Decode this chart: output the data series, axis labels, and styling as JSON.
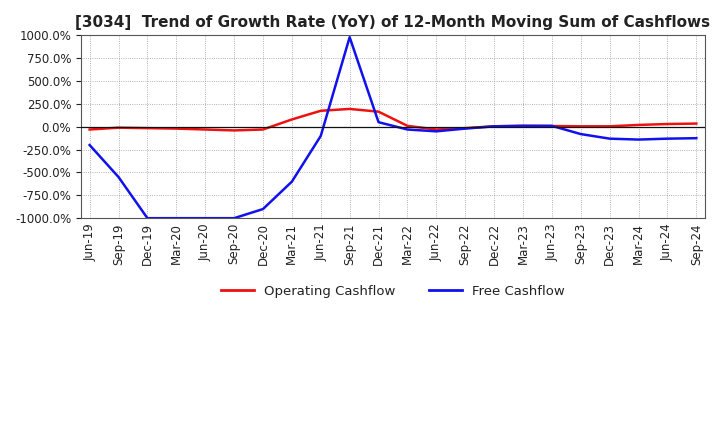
{
  "title": "[3034]  Trend of Growth Rate (YoY) of 12-Month Moving Sum of Cashflows",
  "xlabel_labels": [
    "Jun-19",
    "Sep-19",
    "Dec-19",
    "Mar-20",
    "Jun-20",
    "Sep-20",
    "Dec-20",
    "Mar-21",
    "Jun-21",
    "Sep-21",
    "Dec-21",
    "Mar-22",
    "Jun-22",
    "Sep-22",
    "Dec-22",
    "Mar-23",
    "Jun-23",
    "Sep-23",
    "Dec-23",
    "Mar-24",
    "Jun-24",
    "Sep-24"
  ],
  "operating_cashflow": [
    -30,
    -10,
    -15,
    -20,
    -30,
    -40,
    -30,
    80,
    175,
    195,
    165,
    10,
    -30,
    -15,
    5,
    10,
    8,
    5,
    5,
    20,
    30,
    35
  ],
  "free_cashflow": [
    -200,
    -550,
    -1000,
    -1000,
    -1000,
    -1000,
    -900,
    -600,
    -100,
    980,
    50,
    -30,
    -50,
    -20,
    5,
    10,
    10,
    -80,
    -130,
    -140,
    -130,
    -125
  ],
  "ylim": [
    -1000,
    1000
  ],
  "yticks": [
    -1000,
    -750,
    -500,
    -250,
    0,
    250,
    500,
    750,
    1000
  ],
  "operating_color": "#ee1111",
  "free_color": "#1111ee",
  "background_color": "#ffffff",
  "grid_color": "#999999",
  "legend_labels": [
    "Operating Cashflow",
    "Free Cashflow"
  ],
  "title_fontsize": 11,
  "axis_fontsize": 8.5
}
